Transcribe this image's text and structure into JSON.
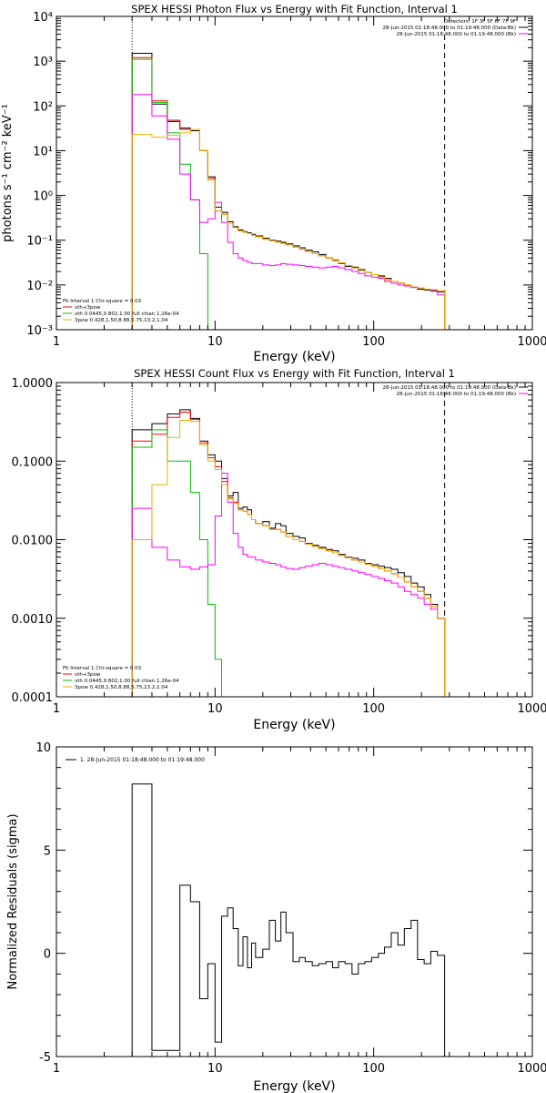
{
  "chart_data": [
    {
      "type": "line",
      "title": "SPEX HESSI Photon Flux vs Energy with Fit Function, Interval 1",
      "xlabel": "Energy (keV)",
      "ylabel": "photons s⁻¹ cm⁻² keV⁻¹",
      "xscale": "log",
      "yscale": "log",
      "xlim": [
        1,
        1000
      ],
      "ylim": [
        0.001,
        10000
      ],
      "xticks": [
        "1",
        "10",
        "100",
        "1000"
      ],
      "yticks": [
        "10⁻³",
        "10⁻²",
        "10⁻¹",
        "10⁰",
        "10¹",
        "10²",
        "10³",
        "10⁴"
      ],
      "header": [
        "Detectors: 1F 3F 5F 6F 7F 9F",
        "28-Jun-2015 01:18:48.000 to 01:19:48.000 (Data-Bk)",
        "28-Jun-2015 01:18:48.000 to 01:19:48.000 (Bk)"
      ],
      "fit_lines": [
        "Fit Interval 1    Chi-square = 0.03",
        "vth+3pow",
        "vth 0.0445,0.802,1.00  full chian 1.26e-04",
        "3pow 0.428,1.50,8.88,5.75,13.2,1.04"
      ],
      "vlines": [
        {
          "x": 3,
          "style": "dotted"
        },
        {
          "x": 280,
          "style": "dashed"
        }
      ],
      "series": [
        {
          "color": "#000000",
          "edges": [
            3,
            4,
            5,
            6,
            7,
            8,
            9,
            10,
            11,
            12,
            13,
            14,
            15,
            16,
            17,
            18,
            20,
            22,
            24,
            26,
            28,
            31,
            34,
            37,
            41,
            45,
            50,
            55,
            60,
            66,
            73,
            80,
            88,
            97,
            107,
            117,
            129,
            142,
            156,
            172,
            189,
            208,
            229,
            252,
            280
          ],
          "values": [
            1500,
            110,
            45,
            32,
            28,
            10,
            2.6,
            0.55,
            0.42,
            0.26,
            0.2,
            0.17,
            0.155,
            0.145,
            0.135,
            0.125,
            0.11,
            0.1,
            0.095,
            0.09,
            0.083,
            0.075,
            0.068,
            0.06,
            0.055,
            0.048,
            0.04,
            0.036,
            0.03,
            0.026,
            0.025,
            0.022,
            0.019,
            0.017,
            0.016,
            0.014,
            0.012,
            0.011,
            0.0095,
            0.0088,
            0.008,
            0.0077,
            0.0073,
            0.007
          ]
        },
        {
          "color": "#ff0000",
          "edges": [
            3,
            4,
            5,
            6,
            7,
            8,
            9,
            10,
            11,
            12,
            13,
            14,
            15,
            16,
            17,
            18,
            20,
            22,
            24,
            26,
            28,
            31,
            34,
            37,
            41,
            45,
            50,
            55,
            60,
            66,
            73,
            80,
            88,
            97,
            107,
            117,
            129,
            142,
            156,
            172,
            189,
            208,
            229,
            252,
            280
          ],
          "values": [
            1200,
            130,
            48,
            30,
            30,
            10,
            2.4,
            0.45,
            0.38,
            0.24,
            0.19,
            0.16,
            0.15,
            0.14,
            0.13,
            0.12,
            0.105,
            0.097,
            0.09,
            0.085,
            0.078,
            0.07,
            0.063,
            0.056,
            0.05,
            0.045,
            0.04,
            0.035,
            0.031,
            0.027,
            0.024,
            0.021,
            0.019,
            0.017,
            0.015,
            0.013,
            0.012,
            0.011,
            0.01,
            0.009,
            0.0085,
            0.008,
            0.0078,
            0.0075
          ]
        },
        {
          "color": "#00c000",
          "edges": [
            3,
            4,
            5,
            6,
            7,
            8,
            9,
            10
          ],
          "values": [
            1100,
            120,
            25,
            5,
            0.8,
            0.05,
            0.0008
          ]
        },
        {
          "color": "#ff00ff",
          "edges": [
            3,
            4,
            5,
            6,
            7,
            8,
            9,
            10,
            11,
            12,
            13,
            14,
            15,
            16,
            17,
            18,
            20,
            22,
            24,
            26,
            28,
            31,
            34,
            37,
            41,
            45,
            50,
            55,
            60,
            66,
            73,
            80,
            88,
            97,
            107,
            117,
            129,
            142,
            156,
            172,
            189,
            208,
            229,
            252,
            280
          ],
          "values": [
            180,
            60,
            18,
            3,
            0.8,
            0.25,
            0.3,
            0.7,
            0.25,
            0.09,
            0.05,
            0.04,
            0.035,
            0.032,
            0.03,
            0.03,
            0.028,
            0.027,
            0.028,
            0.03,
            0.029,
            0.028,
            0.027,
            0.026,
            0.025,
            0.024,
            0.025,
            0.026,
            0.024,
            0.022,
            0.02,
            0.018,
            0.016,
            0.015,
            0.014,
            0.012,
            0.011,
            0.01,
            0.0095,
            0.009,
            0.0085,
            0.008,
            0.0075,
            0.006
          ]
        },
        {
          "color": "#e6b400",
          "edges": [
            3,
            4,
            5,
            6,
            7,
            8,
            9,
            10,
            11,
            12,
            13,
            14,
            15,
            16,
            17,
            18,
            20,
            22,
            24,
            26,
            28,
            31,
            34,
            37,
            41,
            45,
            50,
            55,
            60,
            66,
            73,
            80,
            88,
            97,
            107,
            117,
            129,
            142,
            156,
            172,
            189,
            208,
            229,
            252,
            280
          ],
          "values": [
            23,
            20,
            22,
            25,
            30,
            10,
            2.2,
            0.45,
            0.38,
            0.24,
            0.19,
            0.16,
            0.15,
            0.14,
            0.13,
            0.12,
            0.105,
            0.097,
            0.09,
            0.085,
            0.078,
            0.07,
            0.063,
            0.056,
            0.05,
            0.045,
            0.04,
            0.035,
            0.031,
            0.027,
            0.024,
            0.021,
            0.019,
            0.017,
            0.015,
            0.013,
            0.012,
            0.011,
            0.01,
            0.009,
            0.0085,
            0.008,
            0.0078,
            0.0075
          ]
        }
      ]
    },
    {
      "type": "line",
      "title": "SPEX HESSI Count Flux vs Energy with Fit Function, Interval 1",
      "xlabel": "Energy (keV)",
      "ylabel": "",
      "xscale": "log",
      "yscale": "log",
      "xlim": [
        1,
        1000
      ],
      "ylim": [
        0.0001,
        1.0
      ],
      "xticks": [
        "1",
        "10",
        "100",
        "1000"
      ],
      "yticks": [
        "0.0001",
        "0.0010",
        "0.0100",
        "0.1000",
        "1.0000"
      ],
      "header": [
        "28-Jun-2015 01:18:48.000 to 01:19:48.000 (Data-Bk)",
        "28-Jun-2015 01:18:48.000 to 01:19:48.000 (Bk)"
      ],
      "fit_lines": [
        "Fit Interval 1    Chi-square = 0.03",
        "vth+3pow",
        "vth 0.0445,0.802,1.00  full chian 1.26e-04",
        "3pow 0.428,1.50,8.88,5.75,13.2,1.04"
      ],
      "vlines": [
        {
          "x": 3,
          "style": "dotted"
        },
        {
          "x": 280,
          "style": "dashed"
        }
      ],
      "series": [
        {
          "color": "#000000",
          "edges": [
            3,
            4,
            5,
            6,
            7,
            8,
            9,
            10,
            11,
            12,
            13,
            14,
            15,
            16,
            17,
            18,
            20,
            22,
            24,
            26,
            28,
            31,
            34,
            37,
            41,
            45,
            50,
            55,
            60,
            66,
            73,
            80,
            88,
            97,
            107,
            117,
            129,
            142,
            156,
            172,
            189,
            208,
            229,
            252,
            280
          ],
          "values": [
            0.25,
            0.3,
            0.4,
            0.45,
            0.35,
            0.18,
            0.12,
            0.1,
            0.06,
            0.036,
            0.04,
            0.025,
            0.026,
            0.024,
            0.018,
            0.016,
            0.017,
            0.014,
            0.016,
            0.015,
            0.012,
            0.011,
            0.0105,
            0.009,
            0.0085,
            0.008,
            0.0075,
            0.0072,
            0.0065,
            0.006,
            0.0058,
            0.0055,
            0.005,
            0.0048,
            0.0046,
            0.0044,
            0.0042,
            0.0038,
            0.0034,
            0.0028,
            0.0025,
            0.002,
            0.0015,
            0.001
          ]
        },
        {
          "color": "#ff0000",
          "edges": [
            3,
            4,
            5,
            6,
            7,
            8,
            9,
            10,
            11,
            12,
            13,
            14,
            15,
            16,
            17,
            18,
            20,
            22,
            24,
            26,
            28,
            31,
            34,
            37,
            41,
            45,
            50,
            55,
            60,
            66,
            73,
            80,
            88,
            97,
            107,
            117,
            129,
            142,
            156,
            172,
            189,
            208,
            229,
            252,
            280
          ],
          "values": [
            0.18,
            0.22,
            0.36,
            0.42,
            0.34,
            0.17,
            0.11,
            0.085,
            0.055,
            0.034,
            0.03,
            0.024,
            0.023,
            0.021,
            0.018,
            0.016,
            0.015,
            0.0135,
            0.0135,
            0.0125,
            0.011,
            0.01,
            0.0095,
            0.0088,
            0.0082,
            0.0077,
            0.0072,
            0.0068,
            0.0063,
            0.0059,
            0.0055,
            0.0052,
            0.0049,
            0.0046,
            0.0043,
            0.004,
            0.0037,
            0.0033,
            0.0029,
            0.0025,
            0.0022,
            0.0018,
            0.0014,
            0.001
          ]
        },
        {
          "color": "#00c000",
          "edges": [
            3,
            4,
            5,
            6,
            7,
            8,
            9,
            10,
            11
          ],
          "values": [
            0.15,
            0.25,
            0.1,
            0.1,
            0.04,
            0.01,
            0.0015,
            0.0003
          ]
        },
        {
          "color": "#ff00ff",
          "edges": [
            3,
            4,
            5,
            6,
            7,
            8,
            9,
            10,
            11,
            12,
            13,
            14,
            15,
            16,
            17,
            18,
            20,
            22,
            24,
            26,
            28,
            31,
            34,
            37,
            41,
            45,
            50,
            55,
            60,
            66,
            73,
            80,
            88,
            97,
            107,
            117,
            129,
            142,
            156,
            172,
            189,
            208,
            229,
            252,
            280
          ],
          "values": [
            0.025,
            0.008,
            0.0055,
            0.0045,
            0.0042,
            0.0045,
            0.0048,
            0.02,
            0.07,
            0.03,
            0.012,
            0.008,
            0.0065,
            0.006,
            0.006,
            0.0055,
            0.0052,
            0.005,
            0.0048,
            0.0045,
            0.0043,
            0.0042,
            0.0044,
            0.0046,
            0.0048,
            0.005,
            0.0048,
            0.0046,
            0.0044,
            0.0042,
            0.004,
            0.0038,
            0.0036,
            0.0034,
            0.0032,
            0.003,
            0.0028,
            0.0025,
            0.0022,
            0.002,
            0.0018,
            0.0015,
            0.0013,
            0.001
          ]
        },
        {
          "color": "#e6b400",
          "edges": [
            3,
            4,
            5,
            6,
            7,
            8,
            9,
            10,
            11,
            12,
            13,
            14,
            15,
            16,
            17,
            18,
            20,
            22,
            24,
            26,
            28,
            31,
            34,
            37,
            41,
            45,
            50,
            55,
            60,
            66,
            73,
            80,
            88,
            97,
            107,
            117,
            129,
            142,
            156,
            172,
            189,
            208,
            229,
            252,
            280
          ],
          "values": [
            0.01,
            0.05,
            0.2,
            0.33,
            0.32,
            0.16,
            0.1,
            0.078,
            0.05,
            0.033,
            0.029,
            0.024,
            0.023,
            0.021,
            0.018,
            0.016,
            0.015,
            0.0135,
            0.0135,
            0.0125,
            0.011,
            0.01,
            0.0095,
            0.0088,
            0.0082,
            0.0077,
            0.0072,
            0.0068,
            0.0063,
            0.0059,
            0.0055,
            0.0052,
            0.0049,
            0.0046,
            0.0043,
            0.004,
            0.0037,
            0.0033,
            0.0029,
            0.0025,
            0.0022,
            0.0018,
            0.0014,
            0.001
          ]
        }
      ]
    },
    {
      "type": "line",
      "title": "",
      "xlabel": "Energy (keV)",
      "ylabel": "Normalized Residuals (sigma)",
      "xscale": "log",
      "yscale": "linear",
      "xlim": [
        1,
        1000
      ],
      "ylim": [
        -5,
        10
      ],
      "xticks": [
        "1",
        "10",
        "100",
        "1000"
      ],
      "yticks": [
        "-5",
        "0",
        "5",
        "10"
      ],
      "legend": "1. 28-Jun-2015 01:18:48.000 to 01:19:48.000",
      "series": [
        {
          "color": "#000000",
          "edges": [
            3,
            4,
            5,
            6,
            7,
            8,
            9,
            10,
            11,
            12,
            13,
            14,
            15,
            16,
            17,
            18,
            20,
            22,
            24,
            26,
            28,
            31,
            34,
            37,
            41,
            45,
            50,
            55,
            60,
            66,
            73,
            80,
            88,
            97,
            107,
            117,
            129,
            142,
            156,
            172,
            189,
            208,
            229,
            252,
            280
          ],
          "values": [
            8.2,
            -4.7,
            -4.7,
            3.3,
            2.5,
            -2.2,
            -0.5,
            -4.3,
            1.8,
            2.2,
            1.2,
            -0.6,
            0.8,
            -0.7,
            0.5,
            -0.2,
            0.2,
            1.6,
            0.6,
            2.0,
            1.0,
            -0.4,
            -0.2,
            -0.4,
            -0.6,
            -0.5,
            -0.4,
            -0.7,
            -0.4,
            -0.5,
            -1.0,
            -0.5,
            -0.4,
            -0.2,
            0.0,
            0.3,
            1.0,
            0.4,
            1.2,
            1.6,
            -0.3,
            -0.5,
            0.1,
            -0.1
          ]
        }
      ]
    }
  ]
}
